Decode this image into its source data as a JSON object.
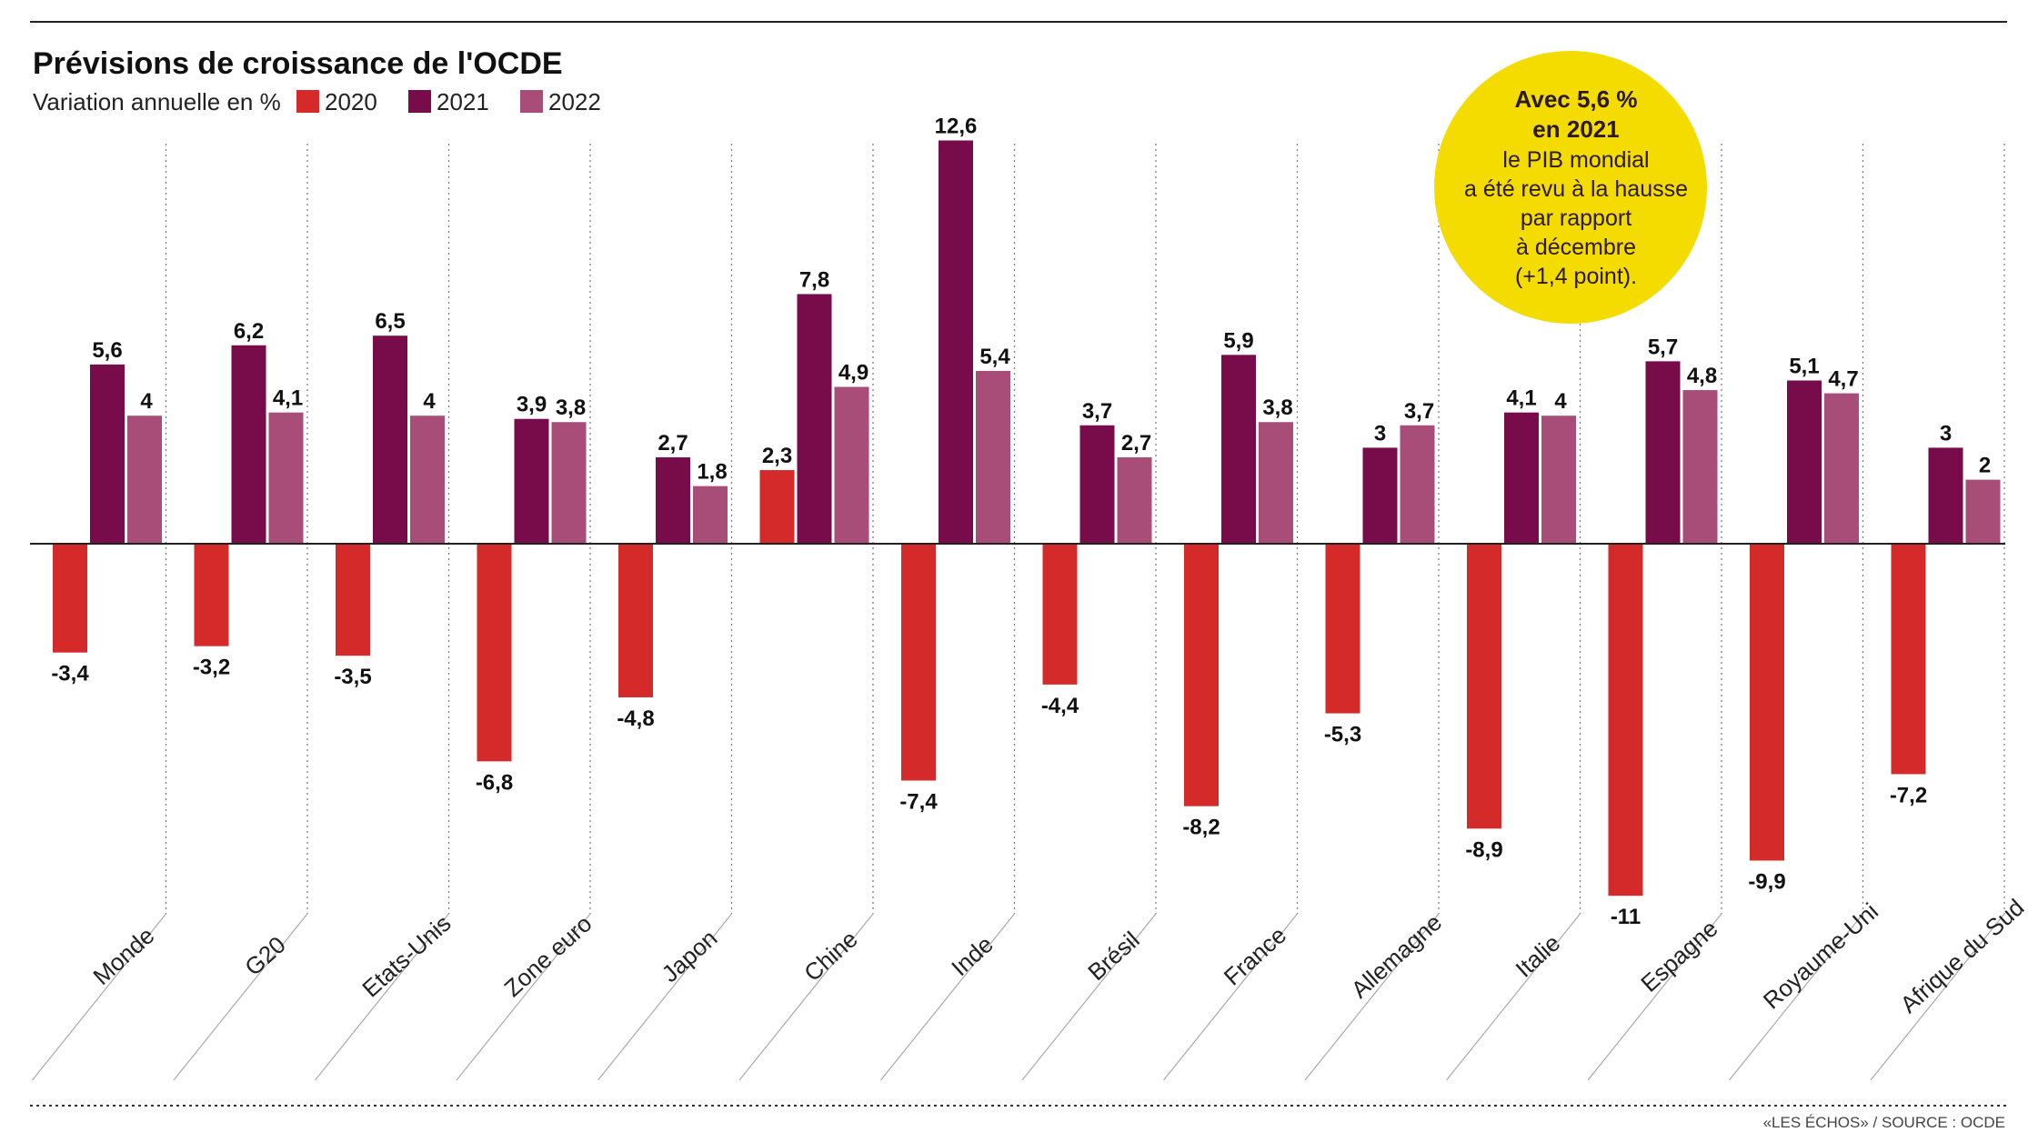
{
  "chart_data": {
    "type": "bar",
    "title": "Prévisions de  croissance de l'OCDE",
    "subtitle": "Variation annuelle en %",
    "categories": [
      "Monde",
      "G20",
      "Etats-Unis",
      "Zone euro",
      "Japon",
      "Chine",
      "Inde",
      "Brésil",
      "France",
      "Allemagne",
      "Italie",
      "Espagne",
      "Royaume-Uni",
      "Afrique du Sud"
    ],
    "series": [
      {
        "name": "2020",
        "color": "#d42a2a",
        "values": [
          -3.4,
          -3.2,
          -3.5,
          -6.8,
          -4.8,
          2.3,
          -7.4,
          -4.4,
          -8.2,
          -5.3,
          -8.9,
          -11,
          -9.9,
          -7.2
        ],
        "labels": [
          "-3,4",
          "-3,2",
          "-3,5",
          "-6,8",
          "-4,8",
          "2,3",
          "-7,4",
          "-4,4",
          "-8,2",
          "-5,3",
          "-8,9",
          "-11",
          "-9,9",
          "-7,2"
        ]
      },
      {
        "name": "2021",
        "color": "#780b4a",
        "values": [
          5.6,
          6.2,
          6.5,
          3.9,
          2.7,
          7.8,
          12.6,
          3.7,
          5.9,
          3,
          4.1,
          5.7,
          5.1,
          3
        ],
        "labels": [
          "5,6",
          "6,2",
          "6,5",
          "3,9",
          "2,7",
          "7,8",
          "12,6",
          "3,7",
          "5,9",
          "3",
          "4,1",
          "5,7",
          "5,1",
          "3"
        ]
      },
      {
        "name": "2022",
        "color": "#a84c78",
        "values": [
          4,
          4.1,
          4,
          3.8,
          1.8,
          4.9,
          5.4,
          2.7,
          3.8,
          3.7,
          4,
          4.8,
          4.7,
          2
        ],
        "labels": [
          "4",
          "4,1",
          "4",
          "3,8",
          "1,8",
          "4,9",
          "5,4",
          "2,7",
          "3,8",
          "3,7",
          "4",
          "4,8",
          "4,7",
          "2"
        ]
      }
    ],
    "ylim": [
      -11.5,
      13
    ],
    "legend_position": "top-left",
    "grid": false
  },
  "annotation": {
    "bold_lines": [
      "Avec 5,6 %",
      "en 2021"
    ],
    "lines": [
      "le PIB mondial",
      "a été revu à la hausse",
      "par rapport",
      "à décembre",
      "(+1,4 point)."
    ],
    "color": "#f5dc00"
  },
  "source": "«LES ÉCHOS» / SOURCE : OCDE"
}
